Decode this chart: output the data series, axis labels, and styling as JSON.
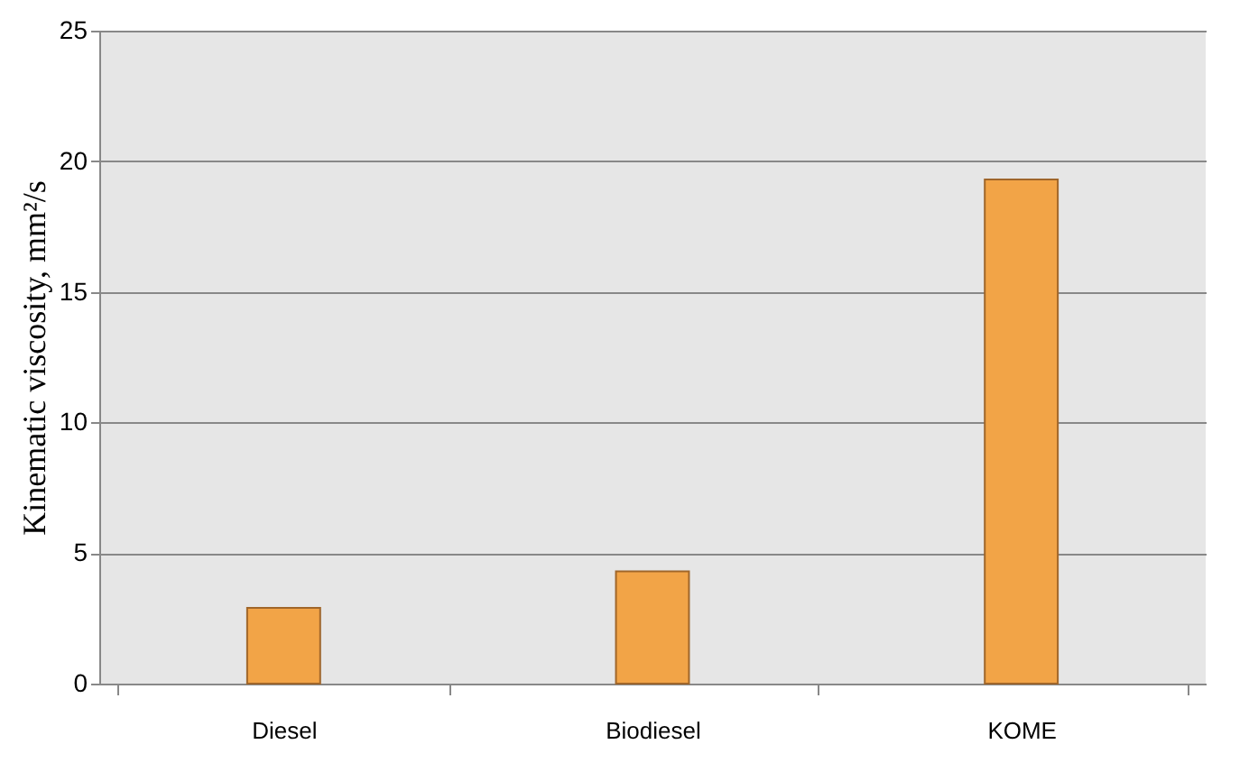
{
  "chart_data": {
    "type": "bar",
    "ylabel": "Kinematic viscosity, mm²/s",
    "categories": [
      "Diesel",
      "Biodiesel",
      "KOME"
    ],
    "values": [
      2.9,
      4.3,
      19.3
    ],
    "color": "#f2a447",
    "ylim": [
      0,
      25
    ],
    "yticks": [
      0,
      5,
      10,
      15,
      20,
      25
    ],
    "grid": "y"
  }
}
